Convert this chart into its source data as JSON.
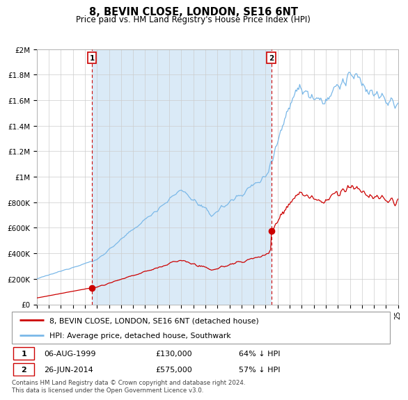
{
  "title": "8, BEVIN CLOSE, LONDON, SE16 6NT",
  "subtitle": "Price paid vs. HM Land Registry's House Price Index (HPI)",
  "hpi_color": "#7ab8e8",
  "hpi_fill_color": "#daeaf7",
  "property_color": "#cc0000",
  "annotation_color": "#cc0000",
  "background_color": "#ffffff",
  "grid_color": "#cccccc",
  "ylim": [
    0,
    2000000
  ],
  "yticks": [
    0,
    200000,
    400000,
    600000,
    800000,
    1000000,
    1200000,
    1400000,
    1600000,
    1800000,
    2000000
  ],
  "ytick_labels": [
    "£0",
    "£200K",
    "£400K",
    "£600K",
    "£800K",
    "£1M",
    "£1.2M",
    "£1.4M",
    "£1.6M",
    "£1.8M",
    "£2M"
  ],
  "legend_label_property": "8, BEVIN CLOSE, LONDON, SE16 6NT (detached house)",
  "legend_label_hpi": "HPI: Average price, detached house, Southwark",
  "transaction1_date": "06-AUG-1999",
  "transaction1_price": "£130,000",
  "transaction1_hpi": "64% ↓ HPI",
  "transaction1_year": 1999.58,
  "transaction1_value": 130000,
  "transaction2_date": "26-JUN-2014",
  "transaction2_price": "£575,000",
  "transaction2_hpi": "57% ↓ HPI",
  "transaction2_year": 2014.47,
  "transaction2_value": 575000,
  "footer": "Contains HM Land Registry data © Crown copyright and database right 2024.\nThis data is licensed under the Open Government Licence v3.0.",
  "xmin": 1995.25,
  "xmax": 2025.0
}
